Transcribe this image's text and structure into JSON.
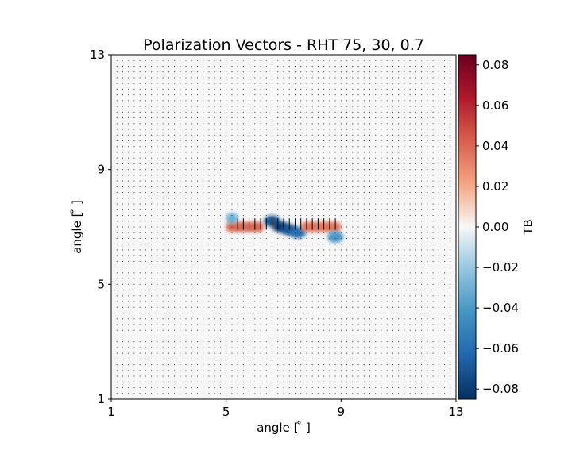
{
  "chart_data": {
    "type": "heatmap",
    "title": "Polarization Vectors - RHT 75, 30, 0.7",
    "xlabel": "angle [$^\\circ$]",
    "ylabel": "angle [$^\\circ$]",
    "xlabel_display": "angle [ ̊ ]",
    "ylabel_display": "angle [ ̊ ]",
    "xlim": [
      1,
      13
    ],
    "ylim": [
      1,
      13
    ],
    "xticks": [
      "1",
      "5",
      "9",
      "13"
    ],
    "yticks": [
      "1",
      "5",
      "9",
      "13"
    ],
    "grid": false,
    "colormap": "RdBu_r",
    "colorbar": {
      "label": "TB",
      "range": [
        -0.085,
        0.085
      ],
      "ticks": [
        "0.08",
        "0.06",
        "0.04",
        "0.02",
        "0.00",
        "−0.02",
        "−0.04",
        "−0.06",
        "−0.08"
      ],
      "tick_values": [
        0.08,
        0.06,
        0.04,
        0.02,
        0.0,
        -0.02,
        -0.04,
        -0.06,
        -0.08
      ]
    },
    "background_value": 0.0,
    "features": [
      {
        "type": "band",
        "x_from": 5.0,
        "x_to": 6.3,
        "y": 7.0,
        "value": 0.04
      },
      {
        "type": "band",
        "x_from": 5.0,
        "x_to": 5.4,
        "y": 7.3,
        "value": -0.03
      },
      {
        "type": "blob",
        "x": 6.6,
        "y": 7.2,
        "value": -0.07
      },
      {
        "type": "blob",
        "x": 6.9,
        "y": 7.0,
        "value": -0.08
      },
      {
        "type": "blob",
        "x": 7.2,
        "y": 6.9,
        "value": -0.07
      },
      {
        "type": "blob",
        "x": 7.5,
        "y": 6.8,
        "value": -0.06
      },
      {
        "type": "band",
        "x_from": 7.6,
        "x_to": 9.0,
        "y": 7.0,
        "value": 0.035
      },
      {
        "type": "blob",
        "x": 8.8,
        "y": 6.65,
        "value": -0.04
      }
    ],
    "vectors": {
      "grid_start": 1.2,
      "grid_step": 0.2,
      "long_segments": [
        {
          "x_from": 5.4,
          "x_to": 8.8,
          "y": 7.1,
          "angle_deg": 90,
          "length": 0.4
        }
      ]
    }
  }
}
